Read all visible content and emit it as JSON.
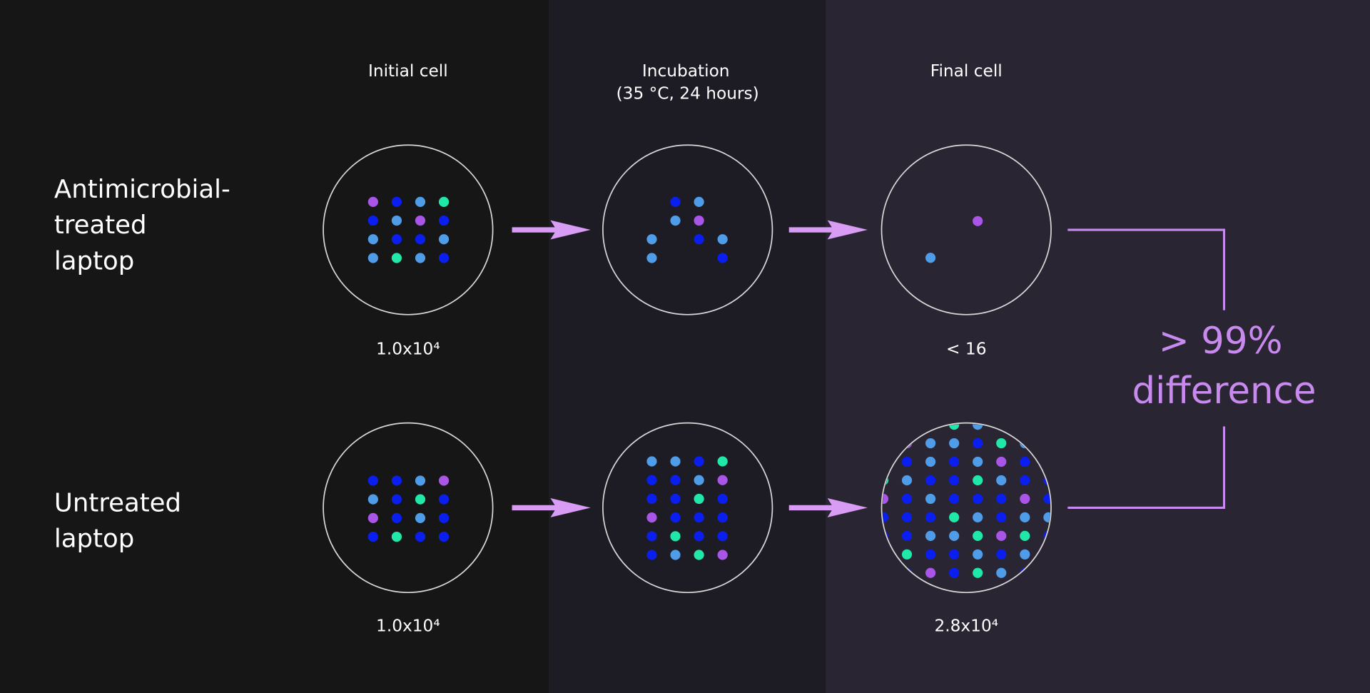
{
  "columns": [
    {
      "lines": [
        "Initial cell"
      ]
    },
    {
      "lines": [
        "Incubation",
        "(35 °C, 24 hours)"
      ]
    },
    {
      "lines": [
        "Final cell"
      ]
    }
  ],
  "rows": [
    {
      "label": [
        "Antimicrobial-",
        "treated",
        "laptop"
      ],
      "counts": [
        "1.0x10⁴",
        "< 16"
      ]
    },
    {
      "label": [
        "Untreated",
        "laptop"
      ],
      "counts": [
        "1.0x10⁴",
        "2.8x10⁴"
      ]
    }
  ],
  "result": [
    "> 99%",
    "difference"
  ]
}
